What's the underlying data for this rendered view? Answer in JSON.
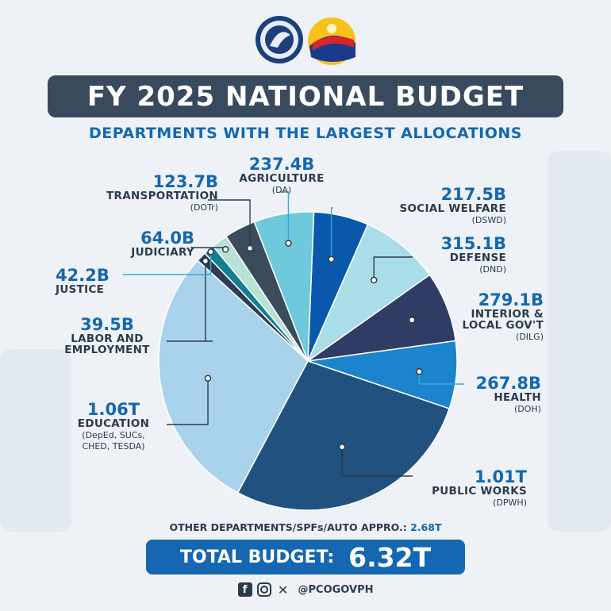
{
  "title": "FY 2025 NATIONAL BUDGET",
  "subtitle": "DEPARTMENTS WITH THE LARGEST ALLOCATIONS",
  "chart_data": {
    "type": "pie",
    "slices": [
      {
        "value_label": "217.5B",
        "name": "SOCIAL WELFARE",
        "abbr": "(DSWD)",
        "value": 217.5,
        "color": "#0a58ac"
      },
      {
        "value_label": "315.1B",
        "name": "DEFENSE",
        "abbr": "(DND)",
        "value": 315.1,
        "color": "#a9dde8"
      },
      {
        "value_label": "279.1B",
        "name": "INTERIOR & LOCAL GOV'T",
        "name_lines": [
          "INTERIOR &",
          "LOCAL GOV'T"
        ],
        "abbr": "(DILG)",
        "value": 279.1,
        "color": "#2f3d66"
      },
      {
        "value_label": "267.8B",
        "name": "HEALTH",
        "abbr": "(DOH)",
        "value": 267.8,
        "color": "#1b84cd"
      },
      {
        "value_label": "1.01T",
        "name": "PUBLIC WORKS",
        "abbr": "(DPWH)",
        "value": 1010,
        "color": "#21527f"
      },
      {
        "value_label": "1.06T",
        "name": "EDUCATION",
        "abbr": "(DepEd, SUCs, CHED, TESDA)",
        "abbr_lines": [
          "(DepEd, SUCs,",
          "CHED, TESDA)"
        ],
        "value": 1060,
        "color": "#a9d3ea"
      },
      {
        "value_label": "39.5B",
        "name": "LABOR AND EMPLOYMENT",
        "name_lines": [
          "LABOR AND",
          "EMPLOYMENT"
        ],
        "abbr": "",
        "value": 39.5,
        "color": "#2f3d55"
      },
      {
        "value_label": "42.2B",
        "name": "JUSTICE",
        "abbr": "",
        "value": 42.2,
        "color": "#12808e"
      },
      {
        "value_label": "64.0B",
        "name": "JUDICIARY",
        "abbr": "",
        "value": 64.0,
        "color": "#b7e2d5"
      },
      {
        "value_label": "123.7B",
        "name": "TRANSPORTATION",
        "abbr": "(DOTr)",
        "value": 123.7,
        "color": "#3a4b5c"
      },
      {
        "value_label": "237.4B",
        "name": "AGRICULTURE",
        "abbr": "(DA)",
        "value": 237.4,
        "color": "#6ec9dc"
      }
    ]
  },
  "other": {
    "label": "OTHER DEPARTMENTS/SPFs/AUTO APPRO.:",
    "value": "2.68T"
  },
  "total": {
    "label": "TOTAL BUDGET:",
    "value": "6.32T"
  },
  "social": {
    "icons": [
      "facebook-icon",
      "instagram-icon",
      "x-icon"
    ],
    "handle": "@PCOGOVPH"
  },
  "colors": {
    "accent": "#1467b0",
    "title_bar": "#3a4a5e",
    "text_dark": "#2d3a4b",
    "background": "#eef2f6"
  }
}
